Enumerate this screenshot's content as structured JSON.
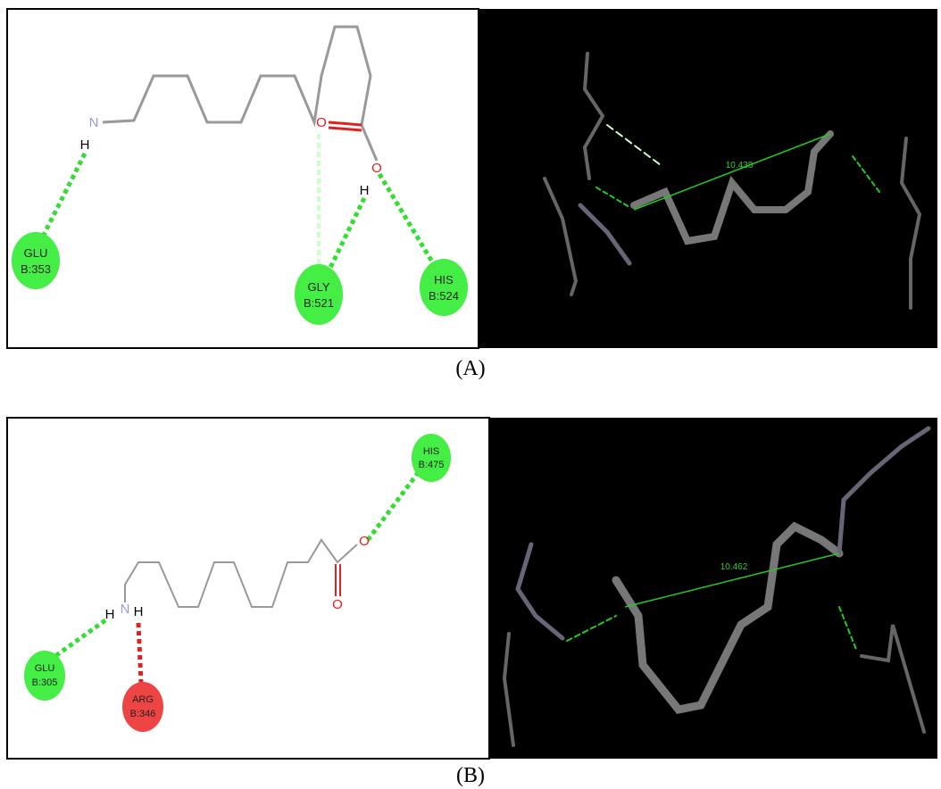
{
  "figure": {
    "panels": [
      {
        "caption": "(A)",
        "residues": [
          {
            "name": "GLU",
            "id": "B:353"
          },
          {
            "name": "GLY",
            "id": "B:521"
          },
          {
            "name": "HIS",
            "id": "B:524"
          }
        ],
        "atoms": [
          "N",
          "H",
          "O",
          "O",
          "H"
        ],
        "distance": "10.438"
      },
      {
        "caption": "(B)",
        "residues": [
          {
            "name": "HIS",
            "id": "B:475"
          },
          {
            "name": "GLU",
            "id": "B:305"
          },
          {
            "name": "ARG",
            "id": "B:346"
          }
        ],
        "atoms": [
          "N",
          "H",
          "H",
          "O",
          "O"
        ],
        "distance": "10.462"
      }
    ]
  }
}
